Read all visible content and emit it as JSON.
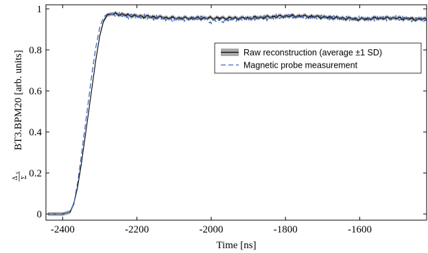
{
  "chart_data": {
    "type": "line",
    "xlabel": "Time [ns]",
    "ylabel_main": "BT3.BPM20 [arb. units]",
    "ylabel_frac_num": "Δ",
    "ylabel_frac_num_sub": "y",
    "ylabel_frac_den": "Σ",
    "xlim": [
      -2445,
      -1420
    ],
    "ylim": [
      -0.03,
      1.02
    ],
    "x_ticks": [
      -2400,
      -2200,
      -2000,
      -1800,
      -1600
    ],
    "x_tick_labels": [
      "-2400",
      "-2200",
      "-2000",
      "-1800",
      "-1600"
    ],
    "y_ticks": [
      0,
      0.2,
      0.4,
      0.6,
      0.8,
      1
    ],
    "y_tick_labels": [
      "0",
      "0.2",
      "0.4",
      "0.6",
      "0.8",
      "1"
    ],
    "grid": false,
    "legend_position": "top-right",
    "series": [
      {
        "name": "Raw reconstruction (average ±1 SD)",
        "style": "solid",
        "color": "#000000",
        "band_color": "#a8a8a8",
        "sd": 0.009,
        "x": [
          -2440,
          -2420,
          -2400,
          -2380,
          -2370,
          -2360,
          -2350,
          -2340,
          -2330,
          -2320,
          -2310,
          -2300,
          -2290,
          -2280,
          -2270,
          -2250,
          -2230,
          -2200,
          -2150,
          -2100,
          -2050,
          -2000,
          -1950,
          -1900,
          -1850,
          -1800,
          -1750,
          -1700,
          -1650,
          -1600,
          -1550,
          -1500,
          -1450,
          -1420
        ],
        "y": [
          0.0,
          0.0,
          0.0,
          0.01,
          0.05,
          0.13,
          0.24,
          0.37,
          0.5,
          0.63,
          0.76,
          0.87,
          0.94,
          0.97,
          0.975,
          0.975,
          0.97,
          0.965,
          0.96,
          0.955,
          0.955,
          0.955,
          0.955,
          0.955,
          0.96,
          0.965,
          0.965,
          0.96,
          0.955,
          0.95,
          0.955,
          0.955,
          0.95,
          0.95
        ]
      },
      {
        "name": "Magnetic probe measurement",
        "style": "dashed",
        "color": "#3565c0",
        "x": [
          -2440,
          -2420,
          -2400,
          -2380,
          -2370,
          -2360,
          -2350,
          -2340,
          -2330,
          -2320,
          -2310,
          -2300,
          -2290,
          -2280,
          -2270,
          -2250,
          -2230,
          -2200,
          -2150,
          -2100,
          -2050,
          -2030,
          -2000,
          -1950,
          -1900,
          -1850,
          -1800,
          -1750,
          -1700,
          -1650,
          -1600,
          -1550,
          -1500,
          -1450,
          -1420
        ],
        "y": [
          0.0,
          0.0,
          0.0,
          0.01,
          0.05,
          0.15,
          0.28,
          0.42,
          0.56,
          0.7,
          0.82,
          0.91,
          0.96,
          0.975,
          0.975,
          0.97,
          0.965,
          0.965,
          0.955,
          0.95,
          0.95,
          0.96,
          0.94,
          0.945,
          0.955,
          0.955,
          0.965,
          0.96,
          0.96,
          0.955,
          0.95,
          0.955,
          0.955,
          0.95,
          0.95
        ]
      }
    ]
  }
}
